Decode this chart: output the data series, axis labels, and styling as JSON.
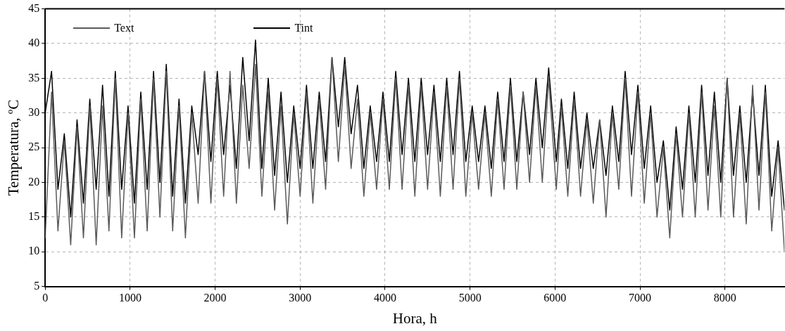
{
  "chart_data": {
    "type": "line",
    "xlabel": "Hora, h",
    "ylabel": "Temperatura, ºC",
    "x": [
      0,
      75,
      150,
      225,
      300,
      375,
      450,
      525,
      600,
      675,
      750,
      825,
      900,
      975,
      1050,
      1125,
      1200,
      1275,
      1350,
      1425,
      1500,
      1575,
      1650,
      1725,
      1800,
      1875,
      1950,
      2025,
      2100,
      2175,
      2250,
      2325,
      2400,
      2475,
      2550,
      2625,
      2700,
      2775,
      2850,
      2925,
      3000,
      3075,
      3150,
      3225,
      3300,
      3375,
      3450,
      3525,
      3600,
      3675,
      3750,
      3825,
      3900,
      3975,
      4050,
      4125,
      4200,
      4275,
      4350,
      4425,
      4500,
      4575,
      4650,
      4725,
      4800,
      4875,
      4950,
      5025,
      5100,
      5175,
      5250,
      5325,
      5400,
      5475,
      5550,
      5625,
      5700,
      5775,
      5850,
      5925,
      6015,
      6075,
      6150,
      6225,
      6300,
      6375,
      6450,
      6525,
      6600,
      6675,
      6750,
      6825,
      6900,
      6975,
      7050,
      7125,
      7200,
      7275,
      7350,
      7425,
      7500,
      7575,
      7650,
      7725,
      7800,
      7875,
      7950,
      8025,
      8100,
      8175,
      8250,
      8325,
      8400,
      8475,
      8550,
      8625,
      8700
    ],
    "series": [
      {
        "name": "Text",
        "color": "#5a5a5a",
        "values": [
          12,
          33,
          13,
          26,
          11,
          28,
          12,
          31,
          11,
          31,
          13,
          35,
          12,
          30,
          12,
          32,
          13,
          35,
          15,
          36,
          13,
          31,
          12,
          30,
          17,
          36,
          17,
          35,
          18,
          36,
          17,
          34,
          22,
          37,
          18,
          33,
          16,
          31,
          14,
          30,
          18,
          33,
          17,
          32,
          19,
          38,
          23,
          37,
          22,
          32,
          18,
          30,
          19,
          32,
          19,
          35,
          19,
          34,
          18,
          34,
          19,
          33,
          18,
          34,
          19,
          35,
          18,
          30,
          19,
          30,
          18,
          32,
          19,
          34,
          19,
          33,
          20,
          34,
          20,
          35,
          19,
          31,
          18,
          32,
          18,
          29,
          17,
          29,
          15,
          30,
          19,
          35,
          18,
          33,
          17,
          30,
          15,
          25,
          12,
          27,
          15,
          30,
          15,
          33,
          16,
          31,
          15,
          35,
          15,
          30,
          14,
          34,
          16,
          33,
          13,
          25,
          10
        ]
      },
      {
        "name": "Tint",
        "color": "#000000",
        "values": [
          30,
          36,
          19,
          27,
          15,
          29,
          17,
          32,
          19,
          34,
          18,
          36,
          19,
          31,
          17,
          33,
          19,
          36,
          20,
          37,
          18,
          32,
          17,
          31,
          24,
          36,
          23,
          36,
          24,
          34,
          22,
          38,
          26,
          40.5,
          22,
          35,
          21,
          33,
          20,
          31,
          22,
          34,
          22,
          33,
          23,
          38,
          28,
          38,
          27,
          34,
          22,
          31,
          23,
          33,
          23,
          36,
          24,
          35,
          23,
          35,
          24,
          34,
          23,
          35,
          24,
          36,
          23,
          31,
          23,
          31,
          22,
          33,
          23,
          35,
          23,
          33,
          24,
          35,
          25,
          36.5,
          23,
          32,
          22,
          33,
          22,
          30,
          22,
          29,
          21,
          31,
          23,
          36,
          24,
          34,
          22,
          31,
          20,
          26,
          16,
          28,
          19,
          31,
          20,
          34,
          21,
          33,
          20,
          35,
          21,
          31,
          20,
          33,
          21,
          34,
          18,
          26,
          16
        ]
      }
    ],
    "xlim": [
      0,
      8700
    ],
    "xticks": [
      0,
      1000,
      2000,
      3000,
      4000,
      5000,
      6000,
      7000,
      8000
    ],
    "ylim": [
      5,
      45
    ],
    "yticks": [
      5,
      10,
      15,
      20,
      25,
      30,
      35,
      40,
      45
    ],
    "grid": true,
    "legend": "top left",
    "marker": "none",
    "line_style": "solid"
  }
}
